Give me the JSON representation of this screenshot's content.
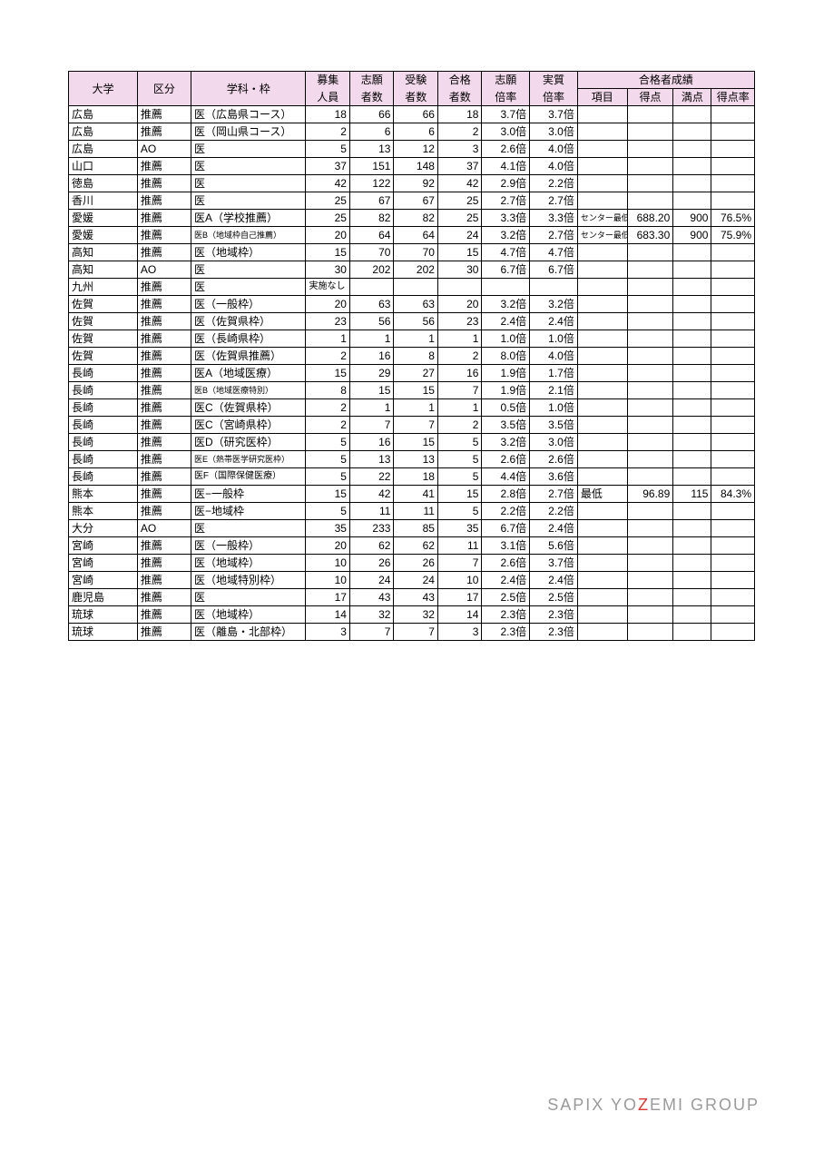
{
  "header": {
    "univ": "大学",
    "kubun": "区分",
    "gakka": "学科・枠",
    "boshu_top": "募集",
    "boshu_bot": "人員",
    "shigan_top": "志願",
    "shigan_bot": "者数",
    "juken_top": "受験",
    "juken_bot": "者数",
    "gokaku_top": "合格",
    "gokaku_bot": "者数",
    "shigan_r_top": "志願",
    "shigan_r_bot": "倍率",
    "jisshitsu_top": "実質",
    "jisshitsu_bot": "倍率",
    "seiseki": "合格者成績",
    "koumoku": "項目",
    "tokuten": "得点",
    "manten": "満点",
    "tokuritsu": "得点率"
  },
  "rows": [
    {
      "u": "広島",
      "k": "推薦",
      "g": "医（広島県コース）",
      "bo": "18",
      "sh": "66",
      "ju": "66",
      "go": "18",
      "sr": "3.7倍",
      "jr": "3.7倍",
      "kou": "",
      "sc": "",
      "mt": "",
      "pct": ""
    },
    {
      "u": "広島",
      "k": "推薦",
      "g": "医（岡山県コース）",
      "bo": "2",
      "sh": "6",
      "ju": "6",
      "go": "2",
      "sr": "3.0倍",
      "jr": "3.0倍",
      "kou": "",
      "sc": "",
      "mt": "",
      "pct": ""
    },
    {
      "u": "広島",
      "k": "AO",
      "g": "医",
      "bo": "5",
      "sh": "13",
      "ju": "12",
      "go": "3",
      "sr": "2.6倍",
      "jr": "4.0倍",
      "kou": "",
      "sc": "",
      "mt": "",
      "pct": ""
    },
    {
      "u": "山口",
      "k": "推薦",
      "g": "医",
      "bo": "37",
      "sh": "151",
      "ju": "148",
      "go": "37",
      "sr": "4.1倍",
      "jr": "4.0倍",
      "kou": "",
      "sc": "",
      "mt": "",
      "pct": ""
    },
    {
      "u": "徳島",
      "k": "推薦",
      "g": "医",
      "bo": "42",
      "sh": "122",
      "ju": "92",
      "go": "42",
      "sr": "2.9倍",
      "jr": "2.2倍",
      "kou": "",
      "sc": "",
      "mt": "",
      "pct": ""
    },
    {
      "u": "香川",
      "k": "推薦",
      "g": "医",
      "bo": "25",
      "sh": "67",
      "ju": "67",
      "go": "25",
      "sr": "2.7倍",
      "jr": "2.7倍",
      "kou": "",
      "sc": "",
      "mt": "",
      "pct": ""
    },
    {
      "u": "愛媛",
      "k": "推薦",
      "g": "医A（学校推薦）",
      "bo": "25",
      "sh": "82",
      "ju": "82",
      "go": "25",
      "sr": "3.3倍",
      "jr": "3.3倍",
      "kou": "センター最低",
      "ksmall": true,
      "sc": "688.20",
      "mt": "900",
      "pct": "76.5%"
    },
    {
      "u": "愛媛",
      "k": "推薦",
      "g": "医B（地域枠自己推薦）",
      "gsmall": true,
      "bo": "20",
      "sh": "64",
      "ju": "64",
      "go": "24",
      "sr": "3.2倍",
      "jr": "2.7倍",
      "kou": "センター最低",
      "ksmall": true,
      "sc": "683.30",
      "mt": "900",
      "pct": "75.9%"
    },
    {
      "u": "高知",
      "k": "推薦",
      "g": "医（地域枠）",
      "bo": "15",
      "sh": "70",
      "ju": "70",
      "go": "15",
      "sr": "4.7倍",
      "jr": "4.7倍",
      "kou": "",
      "sc": "",
      "mt": "",
      "pct": ""
    },
    {
      "u": "高知",
      "k": "AO",
      "g": "医",
      "bo": "30",
      "sh": "202",
      "ju": "202",
      "go": "30",
      "sr": "6.7倍",
      "jr": "6.7倍",
      "kou": "",
      "sc": "",
      "mt": "",
      "pct": ""
    },
    {
      "u": "九州",
      "k": "推薦",
      "g": "医",
      "bo": "実施なし",
      "boLeft": true,
      "sh": "",
      "ju": "",
      "go": "",
      "sr": "",
      "jr": "",
      "kou": "",
      "sc": "",
      "mt": "",
      "pct": ""
    },
    {
      "u": "佐賀",
      "k": "推薦",
      "g": "医（一般枠）",
      "bo": "20",
      "sh": "63",
      "ju": "63",
      "go": "20",
      "sr": "3.2倍",
      "jr": "3.2倍",
      "kou": "",
      "sc": "",
      "mt": "",
      "pct": ""
    },
    {
      "u": "佐賀",
      "k": "推薦",
      "g": "医（佐賀県枠）",
      "bo": "23",
      "sh": "56",
      "ju": "56",
      "go": "23",
      "sr": "2.4倍",
      "jr": "2.4倍",
      "kou": "",
      "sc": "",
      "mt": "",
      "pct": ""
    },
    {
      "u": "佐賀",
      "k": "推薦",
      "g": "医（長崎県枠）",
      "bo": "1",
      "sh": "1",
      "ju": "1",
      "go": "1",
      "sr": "1.0倍",
      "jr": "1.0倍",
      "kou": "",
      "sc": "",
      "mt": "",
      "pct": ""
    },
    {
      "u": "佐賀",
      "k": "推薦",
      "g": "医（佐賀県推薦）",
      "bo": "2",
      "sh": "16",
      "ju": "8",
      "go": "2",
      "sr": "8.0倍",
      "jr": "4.0倍",
      "kou": "",
      "sc": "",
      "mt": "",
      "pct": ""
    },
    {
      "u": "長崎",
      "k": "推薦",
      "g": "医A（地域医療）",
      "bo": "15",
      "sh": "29",
      "ju": "27",
      "go": "16",
      "sr": "1.9倍",
      "jr": "1.7倍",
      "kou": "",
      "sc": "",
      "mt": "",
      "pct": ""
    },
    {
      "u": "長崎",
      "k": "推薦",
      "g": "医B（地域医療特別）",
      "gsmall": true,
      "bo": "8",
      "sh": "15",
      "ju": "15",
      "go": "7",
      "sr": "1.9倍",
      "jr": "2.1倍",
      "kou": "",
      "sc": "",
      "mt": "",
      "pct": ""
    },
    {
      "u": "長崎",
      "k": "推薦",
      "g": "医C（佐賀県枠）",
      "bo": "2",
      "sh": "1",
      "ju": "1",
      "go": "1",
      "sr": "0.5倍",
      "jr": "1.0倍",
      "kou": "",
      "sc": "",
      "mt": "",
      "pct": ""
    },
    {
      "u": "長崎",
      "k": "推薦",
      "g": "医C（宮崎県枠）",
      "bo": "2",
      "sh": "7",
      "ju": "7",
      "go": "2",
      "sr": "3.5倍",
      "jr": "3.5倍",
      "kou": "",
      "sc": "",
      "mt": "",
      "pct": ""
    },
    {
      "u": "長崎",
      "k": "推薦",
      "g": "医D（研究医枠）",
      "bo": "5",
      "sh": "16",
      "ju": "15",
      "go": "5",
      "sr": "3.2倍",
      "jr": "3.0倍",
      "kou": "",
      "sc": "",
      "mt": "",
      "pct": ""
    },
    {
      "u": "長崎",
      "k": "推薦",
      "g": "医E（熱帯医学研究医枠）",
      "gsmall": true,
      "bo": "5",
      "sh": "13",
      "ju": "13",
      "go": "5",
      "sr": "2.6倍",
      "jr": "2.6倍",
      "kou": "",
      "sc": "",
      "mt": "",
      "pct": ""
    },
    {
      "u": "長崎",
      "k": "推薦",
      "g": "医F（国際保健医療）",
      "gsmall10": true,
      "bo": "5",
      "sh": "22",
      "ju": "18",
      "go": "5",
      "sr": "4.4倍",
      "jr": "3.6倍",
      "kou": "",
      "sc": "",
      "mt": "",
      "pct": ""
    },
    {
      "u": "熊本",
      "k": "推薦",
      "g": "医−一般枠",
      "bo": "15",
      "sh": "42",
      "ju": "41",
      "go": "15",
      "sr": "2.8倍",
      "jr": "2.7倍",
      "kou": "最低",
      "sc": "96.89",
      "mt": "115",
      "pct": "84.3%"
    },
    {
      "u": "熊本",
      "k": "推薦",
      "g": "医−地域枠",
      "bo": "5",
      "sh": "11",
      "ju": "11",
      "go": "5",
      "sr": "2.2倍",
      "jr": "2.2倍",
      "kou": "",
      "sc": "",
      "mt": "",
      "pct": ""
    },
    {
      "u": "大分",
      "k": "AO",
      "g": "医",
      "bo": "35",
      "sh": "233",
      "ju": "85",
      "go": "35",
      "sr": "6.7倍",
      "jr": "2.4倍",
      "kou": "",
      "sc": "",
      "mt": "",
      "pct": ""
    },
    {
      "u": "宮崎",
      "k": "推薦",
      "g": "医（一般枠）",
      "bo": "20",
      "sh": "62",
      "ju": "62",
      "go": "11",
      "sr": "3.1倍",
      "jr": "5.6倍",
      "kou": "",
      "sc": "",
      "mt": "",
      "pct": ""
    },
    {
      "u": "宮崎",
      "k": "推薦",
      "g": "医（地域枠）",
      "bo": "10",
      "sh": "26",
      "ju": "26",
      "go": "7",
      "sr": "2.6倍",
      "jr": "3.7倍",
      "kou": "",
      "sc": "",
      "mt": "",
      "pct": ""
    },
    {
      "u": "宮崎",
      "k": "推薦",
      "g": "医（地域特別枠）",
      "bo": "10",
      "sh": "24",
      "ju": "24",
      "go": "10",
      "sr": "2.4倍",
      "jr": "2.4倍",
      "kou": "",
      "sc": "",
      "mt": "",
      "pct": ""
    },
    {
      "u": "鹿児島",
      "k": "推薦",
      "g": "医",
      "bo": "17",
      "sh": "43",
      "ju": "43",
      "go": "17",
      "sr": "2.5倍",
      "jr": "2.5倍",
      "kou": "",
      "sc": "",
      "mt": "",
      "pct": ""
    },
    {
      "u": "琉球",
      "k": "推薦",
      "g": "医（地域枠）",
      "bo": "14",
      "sh": "32",
      "ju": "32",
      "go": "14",
      "sr": "2.3倍",
      "jr": "2.3倍",
      "kou": "",
      "sc": "",
      "mt": "",
      "pct": ""
    },
    {
      "u": "琉球",
      "k": "推薦",
      "g": "医（離島・北部枠）",
      "bo": "3",
      "sh": "7",
      "ju": "7",
      "go": "3",
      "sr": "2.3倍",
      "jr": "2.3倍",
      "kou": "",
      "sc": "",
      "mt": "",
      "pct": ""
    }
  ],
  "footer": {
    "pre": "SAPIX YO",
    "z": "Z",
    "post": "EMI GROUP"
  },
  "style": {
    "header_bg": "#f2d9eb",
    "border_color": "#000000",
    "footer_color": "#9a9a9a",
    "footer_accent": "#d33333"
  }
}
